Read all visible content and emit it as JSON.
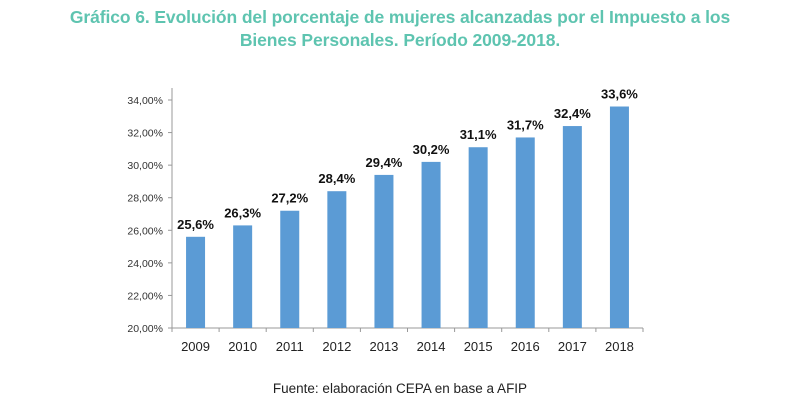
{
  "title_lines": [
    "Gráfico 6. Evolución del porcentaje de mujeres alcanzadas por el Impuesto a los",
    "Bienes Personales. Período 2009-2018."
  ],
  "source": "Fuente: elaboración CEPA en base a AFIP",
  "colors": {
    "title": "#5ec4b0",
    "bar": "#5b9bd5",
    "axis": "#999999"
  },
  "chart_data": {
    "type": "bar",
    "title": "Gráfico 6. Evolución del porcentaje de mujeres alcanzadas por el Impuesto a los Bienes Personales. Período 2009-2018.",
    "xlabel": "",
    "ylabel": "",
    "categories": [
      "2009",
      "2010",
      "2011",
      "2012",
      "2013",
      "2014",
      "2015",
      "2016",
      "2017",
      "2018"
    ],
    "values": [
      25.6,
      26.3,
      27.2,
      28.4,
      29.4,
      30.2,
      31.1,
      31.7,
      32.4,
      33.6
    ],
    "data_labels": [
      "25,6%",
      "26,3%",
      "27,2%",
      "28,4%",
      "29,4%",
      "30,2%",
      "31,1%",
      "31,7%",
      "32,4%",
      "33,6%"
    ],
    "ylim": [
      20,
      34
    ],
    "yticks": [
      20,
      22,
      24,
      26,
      28,
      30,
      32,
      34
    ],
    "ytick_labels": [
      "20,00%",
      "22,00%",
      "24,00%",
      "26,00%",
      "28,00%",
      "30,00%",
      "32,00%",
      "34,00%"
    ],
    "grid": false,
    "legend": "none"
  }
}
